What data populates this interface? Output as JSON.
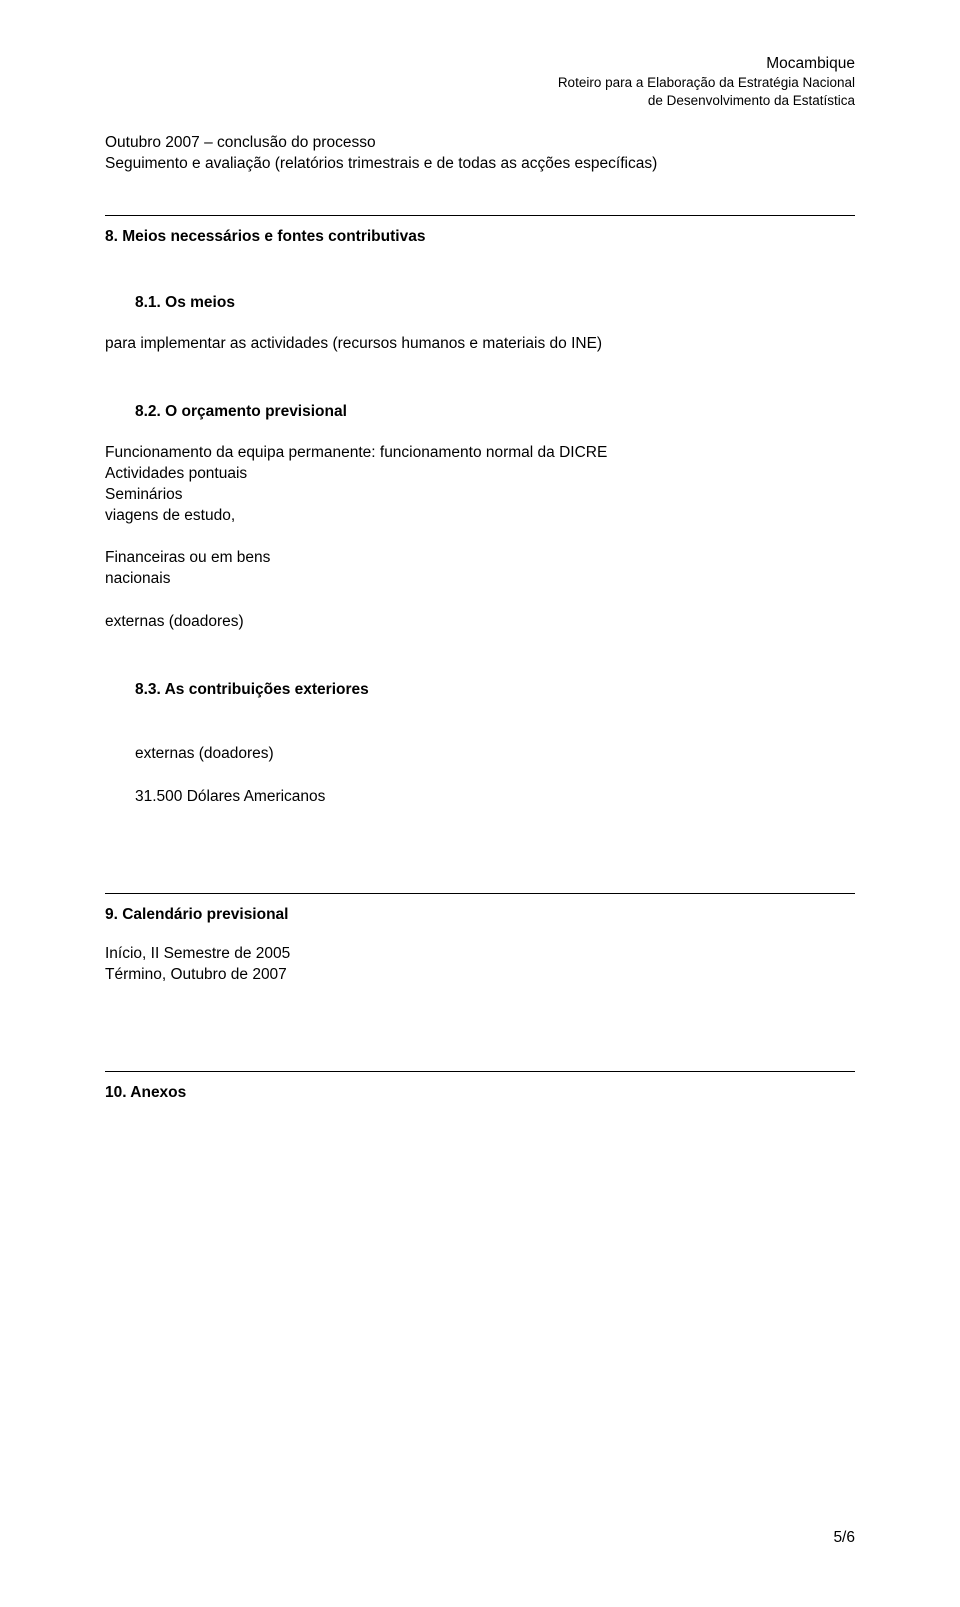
{
  "header": {
    "line1": "Mocambique",
    "line2": "Roteiro para a Elaboração da Estratégia Nacional",
    "line3": "de Desenvolvimento da Estatística"
  },
  "intro": {
    "line1": "Outubro 2007 – conclusão do processo",
    "line2": "Seguimento e avaliação (relatórios trimestrais e de todas as acções específicas)"
  },
  "section8": {
    "title": "8. Meios necessários e fontes contributivas",
    "sub1": {
      "title": "8.1. Os meios",
      "text": "para implementar as actividades (recursos humanos e materiais do INE)"
    },
    "sub2": {
      "title": "8.2. O orçamento previsional",
      "line1": "Funcionamento da equipa permanente: funcionamento normal da DICRE",
      "line2": "Actividades pontuais",
      "line3": "Seminários",
      "line4": "viagens de estudo,",
      "line5": "Financeiras ou em bens",
      "line6": "nacionais",
      "line7": "externas (doadores)"
    },
    "sub3": {
      "title": "8.3. As contribuições exteriores",
      "line1": "externas (doadores)",
      "line2": "31.500 Dólares Americanos"
    }
  },
  "section9": {
    "title": "9. Calendário previsional",
    "line1": "Início, II Semestre de 2005",
    "line2": "Término, Outubro de 2007"
  },
  "section10": {
    "title": "10. Anexos"
  },
  "pageNumber": "5/6"
}
